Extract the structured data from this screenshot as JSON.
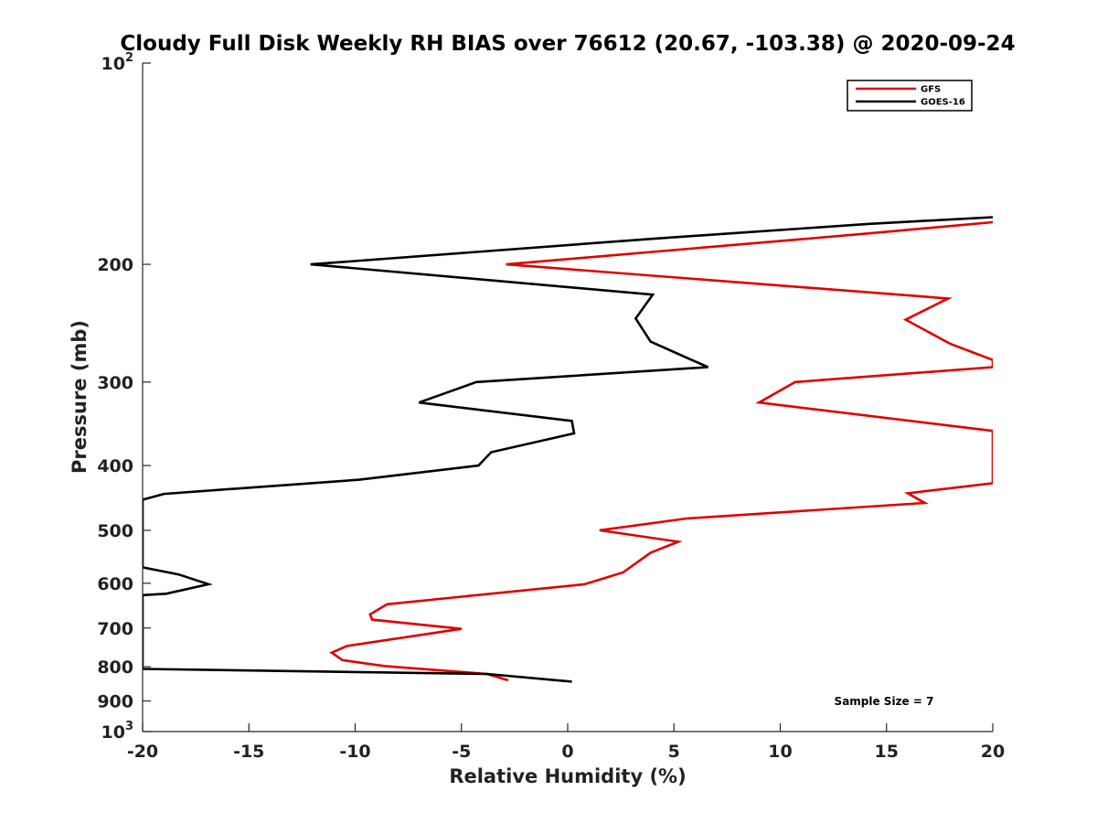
{
  "chart_data": {
    "type": "line",
    "title": "Cloudy Full Disk Weekly RH BIAS over 76612 (20.67, -103.38) @ 2020-09-24",
    "xlabel": "Relative Humidity (%)",
    "ylabel": "Pressure (mb)",
    "xlim": [
      -20,
      20
    ],
    "ylim": [
      100,
      1000
    ],
    "yscale": "log",
    "y_reversed": true,
    "xticks": [
      -20,
      -15,
      -10,
      -5,
      0,
      5,
      10,
      15,
      20
    ],
    "xtick_labels": [
      "-20",
      "-15",
      "-10",
      "-5",
      "0",
      "5",
      "10",
      "15",
      "20"
    ],
    "yticks": [
      {
        "value": 100,
        "base": "10",
        "exp": "2"
      },
      {
        "value": 200,
        "label": "200"
      },
      {
        "value": 300,
        "label": "300"
      },
      {
        "value": 400,
        "label": "400"
      },
      {
        "value": 500,
        "label": "500"
      },
      {
        "value": 600,
        "label": "600"
      },
      {
        "value": 700,
        "label": "700"
      },
      {
        "value": 800,
        "label": "800"
      },
      {
        "value": 900,
        "label": "900"
      },
      {
        "value": 1000,
        "base": "10",
        "exp": "3"
      }
    ],
    "legend_position": "top-right",
    "grid": false,
    "annotation": "Sample Size = 7",
    "series": [
      {
        "name": "GFS",
        "color": "#e00000",
        "points": [
          {
            "x": 20.0,
            "y": 173
          },
          {
            "x": 14.0,
            "y": 180
          },
          {
            "x": -2.9,
            "y": 200
          },
          {
            "x": 17.9,
            "y": 225
          },
          {
            "x": 15.9,
            "y": 242
          },
          {
            "x": 18.0,
            "y": 263
          },
          {
            "x": 20.0,
            "y": 278
          },
          {
            "x": 20.0,
            "y": 285
          },
          {
            "x": 10.7,
            "y": 300
          },
          {
            "x": 9.0,
            "y": 322
          },
          {
            "x": 20.0,
            "y": 355
          },
          {
            "x": 20.0,
            "y": 425
          },
          {
            "x": 16.0,
            "y": 440
          },
          {
            "x": 16.8,
            "y": 455
          },
          {
            "x": 5.6,
            "y": 480
          },
          {
            "x": 1.5,
            "y": 500
          },
          {
            "x": 5.2,
            "y": 520
          },
          {
            "x": 3.9,
            "y": 540
          },
          {
            "x": 2.6,
            "y": 578
          },
          {
            "x": 0.8,
            "y": 602
          },
          {
            "x": -8.5,
            "y": 645
          },
          {
            "x": -9.3,
            "y": 668
          },
          {
            "x": -9.2,
            "y": 680
          },
          {
            "x": -5.0,
            "y": 702
          },
          {
            "x": -10.4,
            "y": 745
          },
          {
            "x": -11.1,
            "y": 762
          },
          {
            "x": -10.6,
            "y": 782
          },
          {
            "x": -8.6,
            "y": 798
          },
          {
            "x": -3.8,
            "y": 820
          },
          {
            "x": -2.8,
            "y": 838
          }
        ]
      },
      {
        "name": "GOES-16",
        "color": "#000000",
        "points": [
          {
            "x": 20.0,
            "y": 170
          },
          {
            "x": 14.2,
            "y": 174
          },
          {
            "x": 4.1,
            "y": 183
          },
          {
            "x": -12.1,
            "y": 200
          },
          {
            "x": 4.0,
            "y": 222
          },
          {
            "x": 3.2,
            "y": 241
          },
          {
            "x": 3.9,
            "y": 261
          },
          {
            "x": 6.6,
            "y": 285
          },
          {
            "x": -4.3,
            "y": 300
          },
          {
            "x": -7.0,
            "y": 322
          },
          {
            "x": 0.2,
            "y": 343
          },
          {
            "x": 0.3,
            "y": 358
          },
          {
            "x": -3.6,
            "y": 382
          },
          {
            "x": -4.2,
            "y": 400
          },
          {
            "x": -9.8,
            "y": 420
          },
          {
            "x": -19.0,
            "y": 441
          },
          {
            "x": -20.0,
            "y": 450
          },
          {
            "x": -20.0,
            "y": 568
          },
          {
            "x": -18.3,
            "y": 582
          },
          {
            "x": -16.9,
            "y": 602
          },
          {
            "x": -18.9,
            "y": 622
          },
          {
            "x": -20.0,
            "y": 625
          },
          {
            "x": -20.0,
            "y": 806
          },
          {
            "x": -3.8,
            "y": 820
          },
          {
            "x": 0.2,
            "y": 842
          }
        ]
      }
    ]
  }
}
